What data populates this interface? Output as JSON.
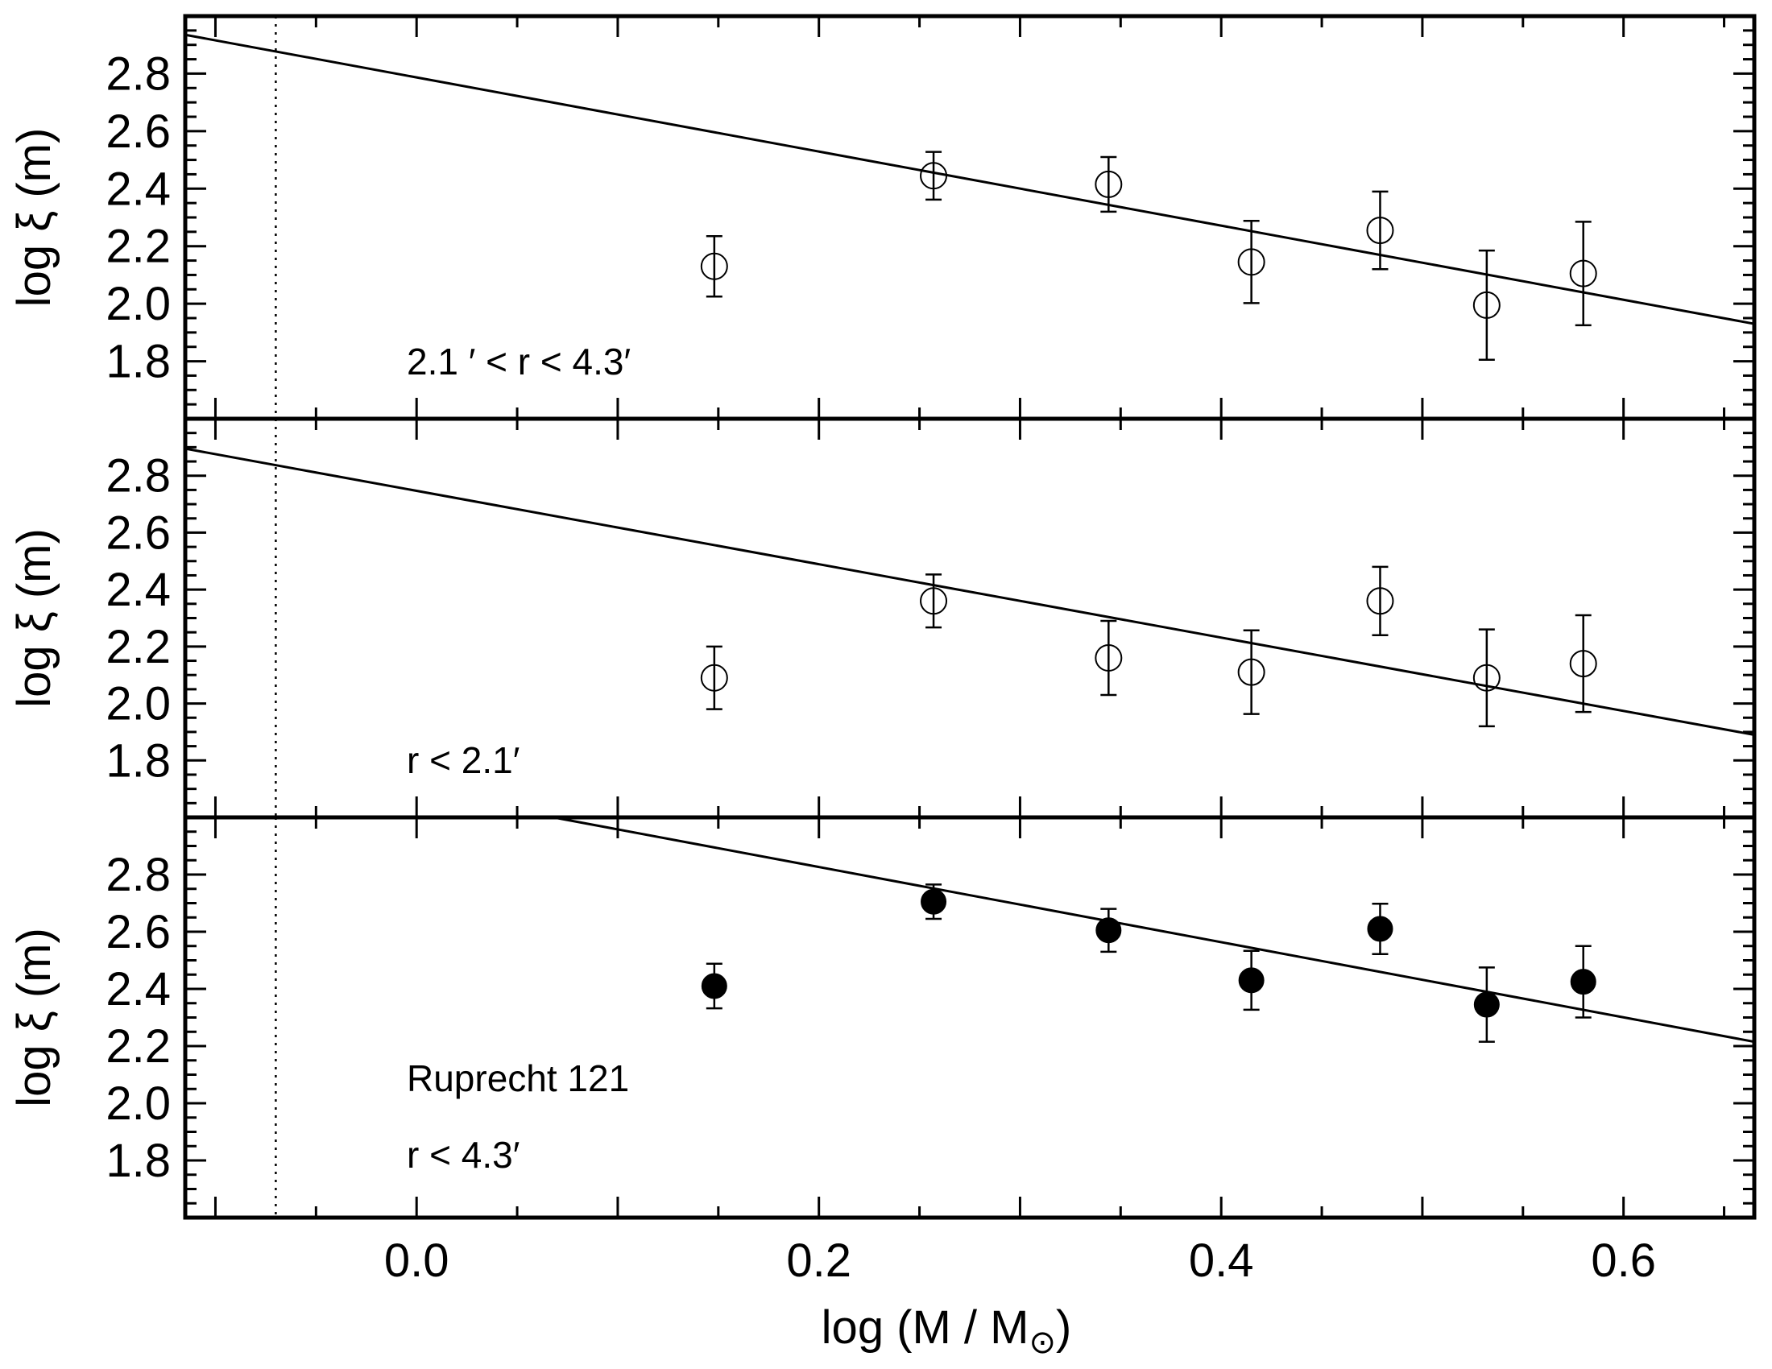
{
  "chart_data": {
    "type": "scatter",
    "xlabel": "log (M / M",
    "xlabel_sub": "⊙",
    "xlabel_close": ")",
    "xlim": [
      -0.115,
      0.665
    ],
    "x_ticks": [
      0.0,
      0.2,
      0.4,
      0.6
    ],
    "x_tick_labels": [
      "0.0",
      "0.2",
      "0.4",
      "0.6"
    ],
    "ref_line_x": -0.07,
    "panels": [
      {
        "id": "top",
        "ylabel": "log ξ (m)",
        "ylim": [
          1.6,
          3.0
        ],
        "y_ticks": [
          1.8,
          2.0,
          2.2,
          2.4,
          2.6,
          2.8
        ],
        "y_tick_labels": [
          "1.8",
          "2.0",
          "2.2",
          "2.4",
          "2.6",
          "2.8"
        ],
        "annotations": [
          "2.1 ′ <  r  <  4.3′"
        ],
        "marker": "open-circle",
        "points": [
          {
            "x": 0.148,
            "y": 2.13,
            "err": 0.105
          },
          {
            "x": 0.257,
            "y": 2.445,
            "err": 0.083
          },
          {
            "x": 0.344,
            "y": 2.415,
            "err": 0.095
          },
          {
            "x": 0.415,
            "y": 2.145,
            "err": 0.143
          },
          {
            "x": 0.479,
            "y": 2.255,
            "err": 0.135
          },
          {
            "x": 0.532,
            "y": 1.995,
            "err": 0.19
          },
          {
            "x": 0.58,
            "y": 2.105,
            "err": 0.18
          }
        ],
        "fit": {
          "x": [
            -0.115,
            0.665
          ],
          "y": [
            2.935,
            1.93
          ]
        }
      },
      {
        "id": "middle",
        "ylabel": "log ξ (m)",
        "ylim": [
          1.6,
          3.0
        ],
        "y_ticks": [
          1.8,
          2.0,
          2.2,
          2.4,
          2.6,
          2.8
        ],
        "y_tick_labels": [
          "1.8",
          "2.0",
          "2.2",
          "2.4",
          "2.6",
          "2.8"
        ],
        "annotations": [
          "r  <  2.1′"
        ],
        "marker": "open-circle",
        "points": [
          {
            "x": 0.148,
            "y": 2.09,
            "err": 0.11
          },
          {
            "x": 0.257,
            "y": 2.36,
            "err": 0.093
          },
          {
            "x": 0.344,
            "y": 2.16,
            "err": 0.13
          },
          {
            "x": 0.415,
            "y": 2.11,
            "err": 0.147
          },
          {
            "x": 0.479,
            "y": 2.36,
            "err": 0.12
          },
          {
            "x": 0.532,
            "y": 2.09,
            "err": 0.17
          },
          {
            "x": 0.58,
            "y": 2.14,
            "err": 0.17
          }
        ],
        "fit": {
          "x": [
            -0.115,
            0.665
          ],
          "y": [
            2.895,
            1.89
          ]
        }
      },
      {
        "id": "bottom",
        "ylabel": "log ξ (m)",
        "ylim": [
          1.6,
          3.0
        ],
        "y_ticks": [
          1.8,
          2.0,
          2.2,
          2.4,
          2.6,
          2.8
        ],
        "y_tick_labels": [
          "1.8",
          "2.0",
          "2.2",
          "2.4",
          "2.6",
          "2.8"
        ],
        "annotations": [
          "Ruprecht 121",
          "r  <  4.3′"
        ],
        "marker": "filled-circle",
        "points": [
          {
            "x": 0.148,
            "y": 2.41,
            "err": 0.078
          },
          {
            "x": 0.257,
            "y": 2.705,
            "err": 0.06
          },
          {
            "x": 0.344,
            "y": 2.605,
            "err": 0.075
          },
          {
            "x": 0.415,
            "y": 2.43,
            "err": 0.103
          },
          {
            "x": 0.479,
            "y": 2.61,
            "err": 0.088
          },
          {
            "x": 0.532,
            "y": 2.345,
            "err": 0.13
          },
          {
            "x": 0.58,
            "y": 2.425,
            "err": 0.125
          }
        ],
        "fit": {
          "x": [
            0.068,
            0.665
          ],
          "y": [
            3.0,
            2.215
          ]
        }
      }
    ]
  }
}
